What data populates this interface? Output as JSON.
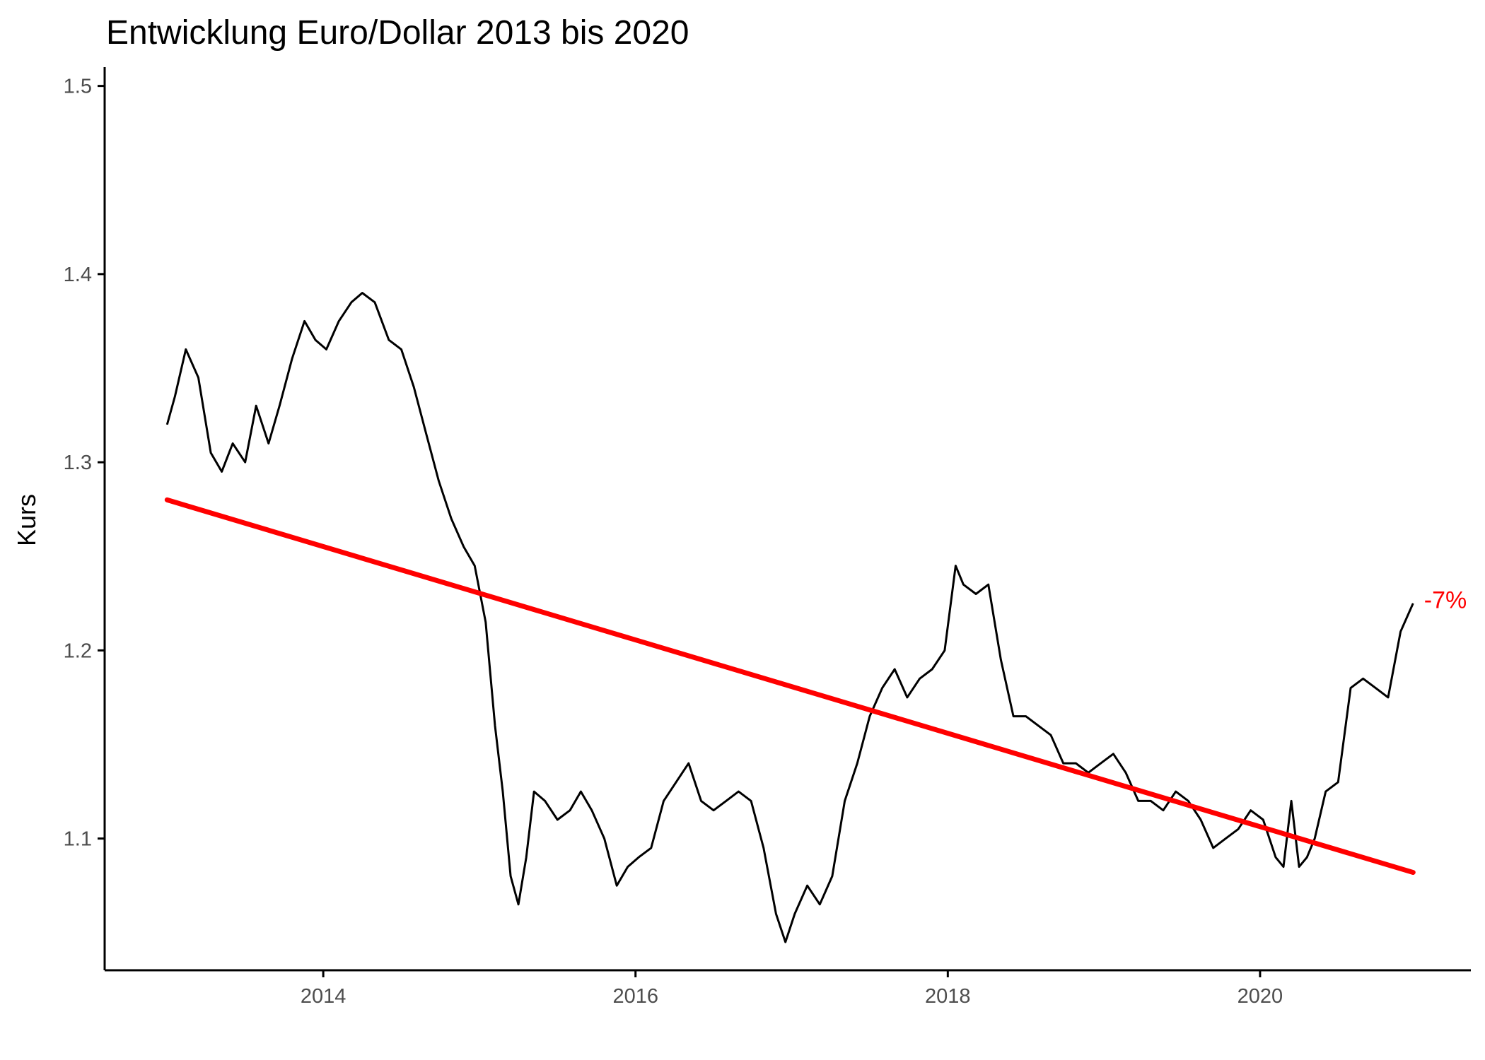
{
  "chart_data": {
    "type": "line",
    "title": "Entwicklung Euro/Dollar 2013 bis 2020",
    "xlabel": "",
    "ylabel": "Kurs",
    "x_range": [
      2012.6,
      2021.35
    ],
    "ylim": [
      1.03,
      1.51
    ],
    "x_ticks": [
      2014,
      2016,
      2018,
      2020
    ],
    "x_tick_labels": [
      "2014",
      "2016",
      "2018",
      "2020"
    ],
    "y_ticks": [
      1.1,
      1.2,
      1.3,
      1.4,
      1.5
    ],
    "y_tick_labels": [
      "1.1",
      "1.2",
      "1.3",
      "1.4",
      "1.5"
    ],
    "grid": false,
    "legend": "none",
    "colors": {
      "line": "#000000",
      "trend": "#ff0000",
      "axis": "#000000",
      "tick_text": "#4d4d4d"
    },
    "series": [
      {
        "x": [
          2013.0,
          2013.05,
          2013.12,
          2013.2,
          2013.28,
          2013.35,
          2013.42,
          2013.5,
          2013.57,
          2013.65,
          2013.72,
          2013.8,
          2013.88,
          2013.95,
          2014.02,
          2014.1,
          2014.18,
          2014.25,
          2014.33,
          2014.42,
          2014.5,
          2014.58,
          2014.66,
          2014.74,
          2014.82,
          2014.9,
          2014.97,
          2015.04,
          2015.1,
          2015.15,
          2015.2,
          2015.25,
          2015.3,
          2015.35,
          2015.42,
          2015.5,
          2015.58,
          2015.65,
          2015.72,
          2015.8,
          2015.88,
          2015.95,
          2016.02,
          2016.1,
          2016.18,
          2016.26,
          2016.34,
          2016.42,
          2016.5,
          2016.58,
          2016.66,
          2016.74,
          2016.82,
          2016.9,
          2016.96,
          2017.02,
          2017.1,
          2017.18,
          2017.26,
          2017.34,
          2017.42,
          2017.5,
          2017.58,
          2017.66,
          2017.74,
          2017.82,
          2017.9,
          2017.98,
          2018.05,
          2018.1,
          2018.18,
          2018.26,
          2018.34,
          2018.42,
          2018.5,
          2018.58,
          2018.66,
          2018.74,
          2018.82,
          2018.9,
          2018.98,
          2019.06,
          2019.14,
          2019.22,
          2019.3,
          2019.38,
          2019.46,
          2019.54,
          2019.62,
          2019.7,
          2019.78,
          2019.86,
          2019.94,
          2020.02,
          2020.1,
          2020.15,
          2020.2,
          2020.25,
          2020.3,
          2020.35,
          2020.42,
          2020.5,
          2020.58,
          2020.66,
          2020.74,
          2020.82,
          2020.9,
          2020.98
        ],
        "y": [
          1.32,
          1.335,
          1.36,
          1.345,
          1.305,
          1.295,
          1.31,
          1.3,
          1.33,
          1.31,
          1.33,
          1.355,
          1.375,
          1.365,
          1.36,
          1.375,
          1.385,
          1.39,
          1.385,
          1.365,
          1.36,
          1.34,
          1.315,
          1.29,
          1.27,
          1.255,
          1.245,
          1.215,
          1.16,
          1.125,
          1.08,
          1.065,
          1.09,
          1.125,
          1.12,
          1.11,
          1.115,
          1.125,
          1.115,
          1.1,
          1.075,
          1.085,
          1.09,
          1.095,
          1.12,
          1.13,
          1.14,
          1.12,
          1.115,
          1.12,
          1.125,
          1.12,
          1.095,
          1.06,
          1.045,
          1.06,
          1.075,
          1.065,
          1.08,
          1.12,
          1.14,
          1.165,
          1.18,
          1.19,
          1.175,
          1.185,
          1.19,
          1.2,
          1.245,
          1.235,
          1.23,
          1.235,
          1.195,
          1.165,
          1.165,
          1.16,
          1.155,
          1.14,
          1.14,
          1.135,
          1.14,
          1.145,
          1.135,
          1.12,
          1.12,
          1.115,
          1.125,
          1.12,
          1.11,
          1.095,
          1.1,
          1.105,
          1.115,
          1.11,
          1.09,
          1.085,
          1.12,
          1.085,
          1.09,
          1.1,
          1.125,
          1.13,
          1.18,
          1.185,
          1.18,
          1.175,
          1.21,
          1.225
        ]
      }
    ],
    "trend": {
      "x": [
        2013.0,
        2020.98
      ],
      "y": [
        1.28,
        1.082
      ]
    },
    "annotation": {
      "text": "-7%",
      "x": 2021.05,
      "y": 1.227,
      "color": "#ff0000"
    }
  }
}
